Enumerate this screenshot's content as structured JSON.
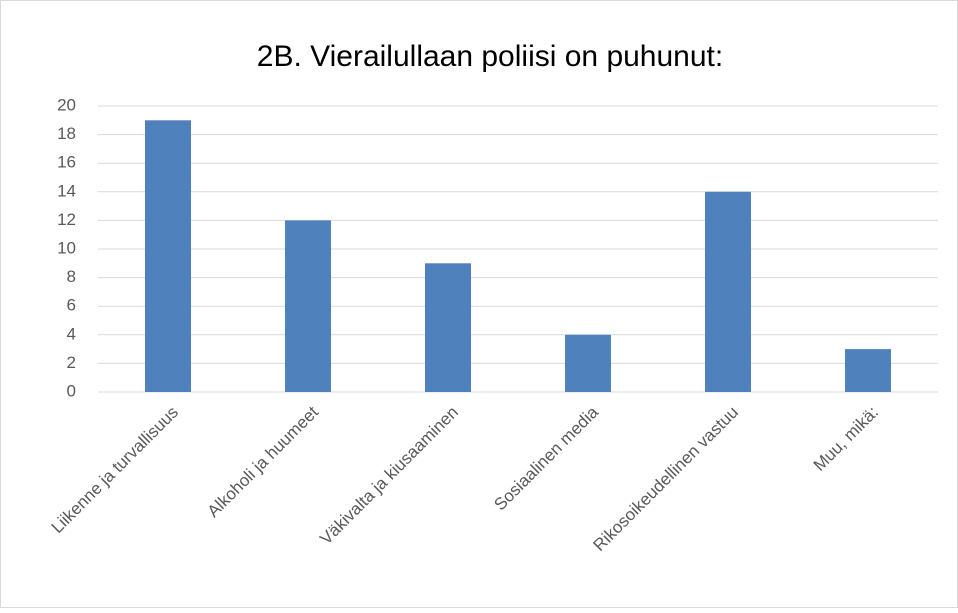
{
  "chart_data": {
    "type": "bar",
    "title": "2B. Vierailullaan poliisi on puhunut:",
    "categories": [
      "Liikenne ja turvallisuus",
      "Alkoholi ja huumeet",
      "Väkivalta ja kiusaaminen",
      "Sosiaalinen media",
      "Rikosoikeudellinen vastuu",
      "Muu, mikä:"
    ],
    "values": [
      19,
      12,
      9,
      4,
      14,
      3
    ],
    "color": "#4f81bd",
    "ylim": [
      0,
      20
    ],
    "yticks": [
      0,
      2,
      4,
      6,
      8,
      10,
      12,
      14,
      16,
      18,
      20
    ],
    "grid": true
  }
}
